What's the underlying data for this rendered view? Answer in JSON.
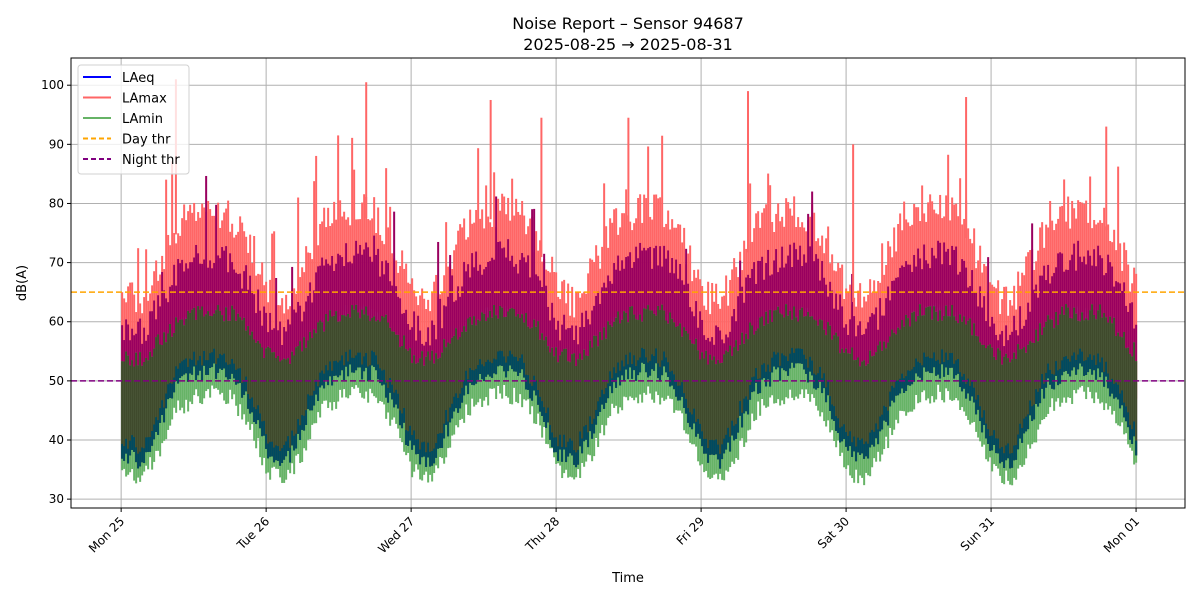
{
  "chart_data": {
    "type": "line",
    "title": "Noise Report – Sensor 94687",
    "subtitle": "2025-08-25 → 2025-08-31",
    "xlabel": "Time",
    "ylabel": "dB(A)",
    "xlim_hours": [
      -8.3,
      176.1
    ],
    "ylim": [
      28.5,
      104.6
    ],
    "grid": true,
    "legend_position": "top-left",
    "x_ticks": [
      {
        "hour": 0,
        "label": "Mon 25"
      },
      {
        "hour": 24,
        "label": "Tue 26"
      },
      {
        "hour": 48,
        "label": "Wed 27"
      },
      {
        "hour": 72,
        "label": "Thu 28"
      },
      {
        "hour": 96,
        "label": "Fri 29"
      },
      {
        "hour": 120,
        "label": "Sat 30"
      },
      {
        "hour": 144,
        "label": "Sun 31"
      },
      {
        "hour": 168,
        "label": "Mon 01"
      }
    ],
    "y_ticks": [
      30,
      40,
      50,
      60,
      70,
      80,
      90,
      100
    ],
    "sample_interval_hours": 3,
    "series": [
      {
        "name": "LAeq",
        "color": "#0000ff",
        "low": [
          38,
          36,
          42,
          49,
          51,
          52,
          51,
          46,
          38,
          36,
          42,
          49,
          51,
          52,
          51,
          46,
          38,
          36,
          42,
          49,
          51,
          52,
          51,
          46,
          38,
          36,
          42,
          49,
          51,
          52,
          51,
          46,
          38,
          36,
          42,
          49,
          51,
          52,
          51,
          46,
          38,
          36,
          42,
          49,
          51,
          52,
          51,
          46,
          38,
          36,
          42,
          49,
          51,
          52,
          51,
          46,
          38
        ],
        "high": [
          62,
          60,
          65,
          71,
          73,
          74,
          73,
          69,
          62,
          60,
          65,
          71,
          73,
          74,
          73,
          69,
          62,
          60,
          65,
          71,
          73,
          74,
          73,
          69,
          62,
          60,
          65,
          71,
          73,
          74,
          73,
          69,
          62,
          60,
          65,
          71,
          73,
          74,
          73,
          69,
          62,
          60,
          65,
          71,
          73,
          74,
          73,
          69,
          62,
          60,
          65,
          71,
          73,
          74,
          73,
          69,
          62
        ]
      },
      {
        "name": "LAmax",
        "color": "#ff6666",
        "low": [
          48,
          45,
          51,
          59,
          61,
          62,
          61,
          56,
          48,
          45,
          51,
          59,
          61,
          62,
          61,
          56,
          48,
          45,
          51,
          59,
          61,
          62,
          61,
          56,
          48,
          45,
          51,
          59,
          61,
          62,
          61,
          56,
          48,
          45,
          51,
          59,
          61,
          62,
          61,
          56,
          48,
          45,
          51,
          59,
          61,
          62,
          61,
          56,
          48,
          45,
          51,
          59,
          61,
          62,
          61,
          56,
          48
        ],
        "high": [
          68,
          66,
          72,
          79,
          81,
          82,
          81,
          76,
          68,
          66,
          72,
          79,
          81,
          82,
          81,
          76,
          68,
          66,
          72,
          79,
          81,
          82,
          81,
          76,
          68,
          66,
          72,
          79,
          81,
          82,
          81,
          76,
          68,
          66,
          72,
          79,
          81,
          82,
          81,
          76,
          68,
          66,
          72,
          79,
          81,
          82,
          81,
          76,
          68,
          66,
          72,
          79,
          81,
          82,
          81,
          76,
          68
        ],
        "peaks": [
          [
            8.9,
            101
          ],
          [
            40.4,
            100.5
          ],
          [
            61,
            97.5
          ],
          [
            69.4,
            94.5
          ],
          [
            83.8,
            94.5
          ],
          [
            103.6,
            99
          ],
          [
            121,
            90
          ],
          [
            139.7,
            98
          ],
          [
            162.9,
            93
          ]
        ]
      },
      {
        "name": "LAmin",
        "color": "#66b366",
        "low": [
          35,
          33,
          38,
          45,
          47,
          48,
          47,
          43,
          35,
          33,
          38,
          45,
          47,
          48,
          47,
          43,
          35,
          33,
          38,
          45,
          47,
          48,
          47,
          43,
          35,
          33,
          38,
          45,
          47,
          48,
          47,
          43,
          35,
          33,
          38,
          45,
          47,
          48,
          47,
          43,
          35,
          33,
          38,
          45,
          47,
          48,
          47,
          43,
          35,
          33,
          38,
          45,
          47,
          48,
          47,
          43,
          35
        ],
        "high": [
          56,
          55,
          58,
          61,
          63,
          63,
          63,
          60,
          56,
          55,
          58,
          61,
          63,
          63,
          63,
          60,
          56,
          55,
          58,
          61,
          63,
          63,
          63,
          60,
          56,
          55,
          58,
          61,
          63,
          63,
          63,
          60,
          56,
          55,
          58,
          61,
          63,
          63,
          63,
          60,
          56,
          55,
          58,
          61,
          63,
          63,
          63,
          60,
          56,
          55,
          58,
          61,
          63,
          63,
          63,
          60,
          56
        ]
      }
    ],
    "thresholds": [
      {
        "name": "Day thr",
        "value": 65,
        "color": "#ffa500"
      },
      {
        "name": "Night thr",
        "value": 50,
        "color": "#800080"
      }
    ],
    "legend": [
      "LAeq",
      "LAmax",
      "LAmin",
      "Day thr",
      "Night thr"
    ]
  }
}
